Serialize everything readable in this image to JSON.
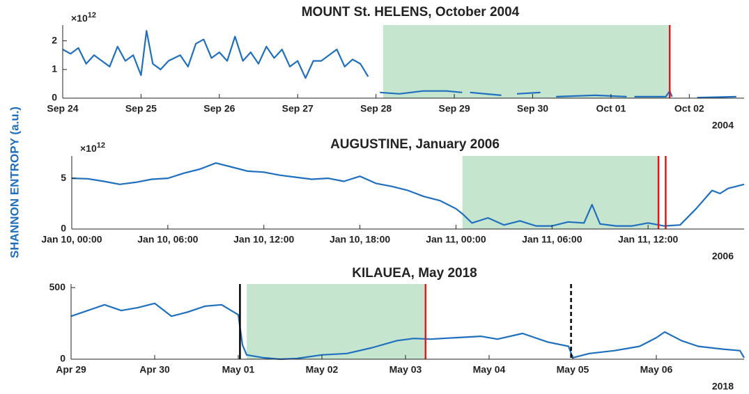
{
  "y_label": "SHANNON ENTROPY (a.u.)",
  "chart_data": [
    {
      "type": "line",
      "title": "MOUNT St. HELENS, October 2004",
      "year_label": "2004",
      "multiplier": {
        "base": "×10",
        "exponent": "12"
      },
      "xlim": [
        0,
        8.7
      ],
      "ylim": [
        0,
        2.55
      ],
      "xticks": [
        {
          "value": 0,
          "label": "Sep 24"
        },
        {
          "value": 1,
          "label": "Sep 25"
        },
        {
          "value": 2,
          "label": "Sep 26"
        },
        {
          "value": 3,
          "label": "Sep 27"
        },
        {
          "value": 4,
          "label": "Sep 28"
        },
        {
          "value": 5,
          "label": "Sep 29"
        },
        {
          "value": 6,
          "label": "Sep 30"
        },
        {
          "value": 7,
          "label": "Oct 01"
        },
        {
          "value": 8,
          "label": "Oct 02"
        }
      ],
      "yticks": [
        0,
        1,
        2
      ],
      "shaded_span": {
        "start": 4.09,
        "end": 7.75,
        "color": "#c6e5cf"
      },
      "event_lines": [
        {
          "x": 7.75,
          "color": "#e8141a",
          "style": "solid"
        }
      ],
      "x": [
        0,
        0.1,
        0.2,
        0.3,
        0.4,
        0.5,
        0.6,
        0.7,
        0.8,
        0.9,
        1.0,
        1.07,
        1.15,
        1.25,
        1.35,
        1.5,
        1.6,
        1.7,
        1.8,
        1.9,
        2.0,
        2.1,
        2.2,
        2.3,
        2.4,
        2.5,
        2.6,
        2.7,
        2.8,
        2.9,
        3.0,
        3.1,
        3.2,
        3.3,
        3.4,
        3.5,
        3.6,
        3.7,
        3.8,
        3.9,
        4.0,
        4.05,
        4.3,
        4.6,
        4.9,
        5.1,
        5.15,
        5.2,
        5.6,
        5.7,
        5.8,
        6.1,
        6.2,
        6.3,
        6.8,
        7.2,
        7.25,
        7.3,
        7.7,
        7.75,
        7.78,
        7.9,
        8.1,
        8.6
      ],
      "series": [
        {
          "name": "entropy",
          "color": "#1f6fbf",
          "values": [
            1.7,
            1.55,
            1.75,
            1.2,
            1.5,
            1.3,
            1.1,
            1.8,
            1.3,
            1.5,
            0.8,
            2.35,
            1.2,
            1.0,
            1.3,
            1.5,
            1.1,
            1.9,
            2.05,
            1.4,
            1.6,
            1.3,
            2.15,
            1.3,
            1.6,
            1.2,
            1.8,
            1.4,
            1.7,
            1.1,
            1.3,
            0.7,
            1.3,
            1.3,
            1.5,
            1.7,
            1.1,
            1.35,
            1.2,
            0.75,
            null,
            0.2,
            0.15,
            0.25,
            0.25,
            0.2,
            null,
            0.2,
            0.1,
            null,
            0.15,
            0.2,
            null,
            0.05,
            0.1,
            0.05,
            null,
            0.05,
            0.05,
            0.25,
            0.05,
            null,
            0.02,
            0.05
          ]
        }
      ]
    },
    {
      "type": "line",
      "title": "AUGUSTINE, January 2006",
      "year_label": "2006",
      "multiplier": {
        "base": "×10",
        "exponent": "12"
      },
      "xlim": [
        0,
        42
      ],
      "ylim": [
        0,
        7.2
      ],
      "xticks": [
        {
          "value": 0,
          "label": "Jan 10, 00:00"
        },
        {
          "value": 6,
          "label": "Jan 10, 06:00"
        },
        {
          "value": 12,
          "label": "Jan 10, 12:00"
        },
        {
          "value": 18,
          "label": "Jan 10, 18:00"
        },
        {
          "value": 24,
          "label": "Jan 11, 00:00"
        },
        {
          "value": 30,
          "label": "Jan 11, 06:00"
        },
        {
          "value": 36,
          "label": "Jan 11, 12:00"
        }
      ],
      "yticks": [
        0,
        5
      ],
      "shaded_span": {
        "start": 24.4,
        "end": 36.6,
        "color": "#c6e5cf"
      },
      "event_lines": [
        {
          "x": 36.65,
          "color": "#e8141a",
          "style": "solid"
        },
        {
          "x": 37.1,
          "color": "#e8141a",
          "style": "solid"
        }
      ],
      "x": [
        0,
        1,
        2,
        3,
        4,
        5,
        6,
        7,
        8,
        9,
        10,
        11,
        12,
        13,
        14,
        15,
        16,
        17,
        18,
        19,
        20,
        21,
        22,
        23,
        24,
        24.4,
        25,
        26,
        27,
        28,
        29,
        30,
        31,
        32,
        32.5,
        33,
        34,
        35,
        36,
        37,
        38,
        39,
        40,
        40.5,
        41,
        42
      ],
      "series": [
        {
          "name": "entropy",
          "color": "#1f6fbf",
          "values": [
            5.0,
            4.95,
            4.7,
            4.4,
            4.6,
            4.9,
            5.0,
            5.5,
            5.9,
            6.5,
            6.1,
            5.7,
            5.6,
            5.3,
            5.1,
            4.9,
            5.0,
            4.7,
            5.2,
            4.5,
            4.2,
            3.8,
            3.2,
            2.8,
            2.0,
            1.5,
            0.6,
            1.1,
            0.4,
            0.8,
            0.3,
            0.3,
            0.7,
            0.6,
            2.4,
            0.5,
            0.3,
            0.3,
            0.6,
            0.3,
            0.4,
            2.0,
            3.8,
            3.5,
            4.0,
            4.4
          ]
        }
      ]
    },
    {
      "type": "line",
      "title": "KILAUEA, May 2018",
      "year_label": "2018",
      "xlim": [
        0,
        8.05
      ],
      "ylim": [
        0,
        525
      ],
      "xticks": [
        {
          "value": 0,
          "label": "Apr 29"
        },
        {
          "value": 1,
          "label": "Apr 30"
        },
        {
          "value": 2,
          "label": "May 01"
        },
        {
          "value": 3,
          "label": "May 02"
        },
        {
          "value": 4,
          "label": "May 03"
        },
        {
          "value": 5,
          "label": "May 04"
        },
        {
          "value": 6,
          "label": "May 05"
        },
        {
          "value": 7,
          "label": "May 06"
        }
      ],
      "yticks": [
        0,
        500
      ],
      "shaded_span": {
        "start": 2.1,
        "end": 4.24,
        "color": "#c6e5cf"
      },
      "event_lines": [
        {
          "x": 2.02,
          "color": "#000000",
          "style": "solid"
        },
        {
          "x": 4.24,
          "color": "#e8141a",
          "style": "solid"
        },
        {
          "x": 5.98,
          "color": "#000000",
          "style": "dashed"
        }
      ],
      "x": [
        0,
        0.2,
        0.4,
        0.6,
        0.8,
        1.0,
        1.2,
        1.4,
        1.6,
        1.8,
        2.0,
        2.05,
        2.1,
        2.3,
        2.5,
        2.7,
        3.0,
        3.3,
        3.6,
        3.9,
        4.1,
        4.3,
        4.6,
        4.9,
        5.1,
        5.4,
        5.7,
        5.95,
        6.0,
        6.2,
        6.5,
        6.8,
        7.0,
        7.1,
        7.3,
        7.5,
        7.8,
        8.0,
        8.05
      ],
      "series": [
        {
          "name": "entropy",
          "color": "#1f6fbf",
          "values": [
            300,
            340,
            380,
            340,
            360,
            390,
            300,
            330,
            370,
            380,
            310,
            100,
            30,
            10,
            0,
            5,
            30,
            40,
            80,
            130,
            145,
            140,
            150,
            160,
            140,
            180,
            120,
            90,
            10,
            40,
            60,
            90,
            150,
            190,
            130,
            90,
            70,
            60,
            10
          ]
        }
      ]
    }
  ]
}
